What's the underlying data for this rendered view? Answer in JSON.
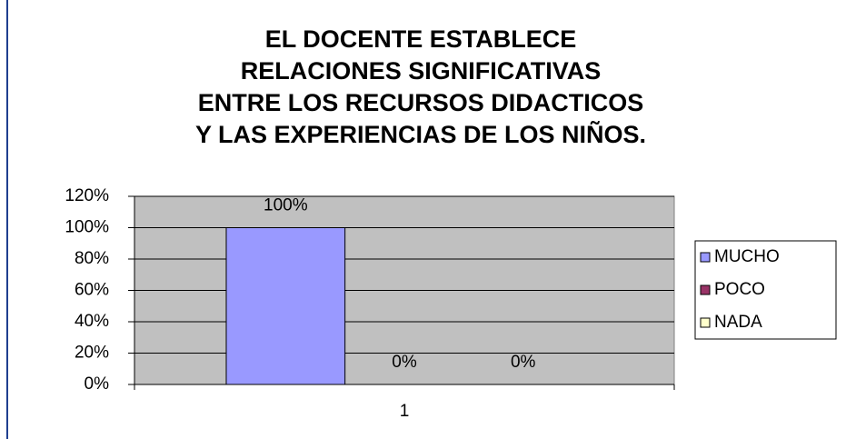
{
  "chart_data": {
    "type": "bar",
    "title": [
      "EL DOCENTE ESTABLECE",
      "RELACIONES SIGNIFICATIVAS",
      "ENTRE LOS RECURSOS DIDACTICOS",
      "Y LAS EXPERIENCIAS DE LOS NIÑOS."
    ],
    "categories": [
      "1"
    ],
    "series": [
      {
        "name": "MUCHO",
        "color": "#9999ff",
        "values": [
          100
        ],
        "value_labels": [
          "100%"
        ]
      },
      {
        "name": "POCO",
        "color": "#993366",
        "values": [
          0
        ],
        "value_labels": [
          "0%"
        ]
      },
      {
        "name": "NADA",
        "color": "#ffffcc",
        "values": [
          0
        ],
        "value_labels": [
          "0%"
        ]
      }
    ],
    "ylim": [
      0,
      120
    ],
    "yticks": [
      {
        "value": 0,
        "label": "0%"
      },
      {
        "value": 20,
        "label": "20%"
      },
      {
        "value": 40,
        "label": "40%"
      },
      {
        "value": 60,
        "label": "60%"
      },
      {
        "value": 80,
        "label": "80%"
      },
      {
        "value": 100,
        "label": "100%"
      },
      {
        "value": 120,
        "label": "120%"
      }
    ],
    "grid": true,
    "legend": "right"
  }
}
